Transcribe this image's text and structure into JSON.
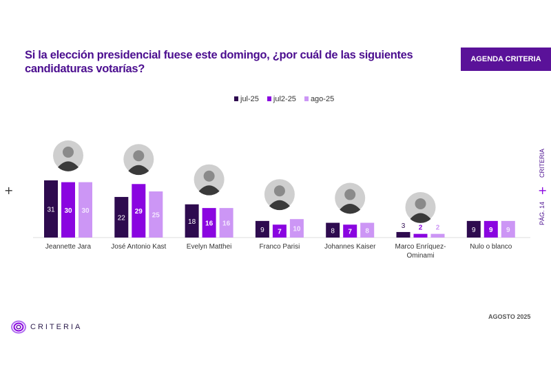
{
  "header": {
    "title": "Si la elección presidencial fuese este domingo, ¿por cuál de las siguientes candidaturas votarías?",
    "badge": "AGENDA CRITERIA"
  },
  "side": {
    "brand": "CRITERIA",
    "page": "PÁG. 14",
    "plus": "+"
  },
  "footer": {
    "date": "AGOSTO 2025",
    "logo_text": "CRITERIA"
  },
  "chart_data": {
    "type": "bar",
    "title": "Si la elección presidencial fuese este domingo, ¿por cuál de las siguientes candidaturas votarías?",
    "categories": [
      "Jeannette Jara",
      "José Antonio Kast",
      "Evelyn Matthei",
      "Franco Parisi",
      "Johannes Kaiser",
      "Marco Enríquez-Ominami",
      "Nulo o blanco"
    ],
    "series": [
      {
        "name": "jul-25",
        "color": "#2e0b4f",
        "values": [
          31,
          22,
          18,
          9,
          8,
          3,
          9
        ]
      },
      {
        "name": "jul2-25",
        "color": "#8a05e0",
        "values": [
          30,
          29,
          16,
          7,
          7,
          2,
          9
        ]
      },
      {
        "name": "ago-25",
        "color": "#cc96f5",
        "values": [
          30,
          25,
          16,
          10,
          8,
          2,
          9
        ]
      }
    ],
    "photos": [
      true,
      true,
      true,
      true,
      true,
      true,
      false
    ],
    "legend_position": "top-center",
    "grid": false
  }
}
